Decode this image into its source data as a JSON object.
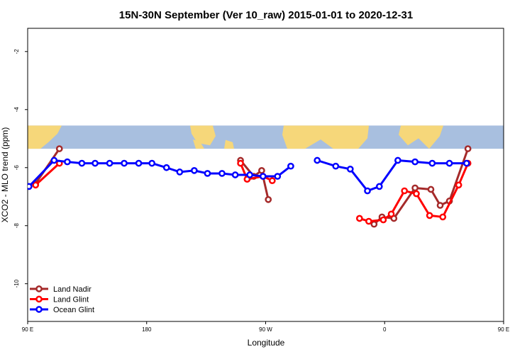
{
  "chart_data": {
    "type": "line",
    "title": "15N-30N September (Ver 10_raw)   2015-01-01 to 2020-12-31",
    "xlabel": "Longitude",
    "ylabel": "XCO2 - MLO trend (ppm)",
    "xlim": [
      90,
      450
    ],
    "ylim": [
      -11.3,
      -1.2
    ],
    "x_ticks": [
      {
        "value": 90,
        "label": "90 E"
      },
      {
        "value": 180,
        "label": "180"
      },
      {
        "value": 270,
        "label": "90 W"
      },
      {
        "value": 360,
        "label": "0"
      },
      {
        "value": 450,
        "label": "90 E"
      },
      {
        "value": 540,
        "label": "180"
      }
    ],
    "y_ticks": [
      {
        "value": -2,
        "label": "-2"
      },
      {
        "value": -4,
        "label": "-4"
      },
      {
        "value": -6,
        "label": "-6"
      },
      {
        "value": -8,
        "label": "-8"
      },
      {
        "value": -10,
        "label": "-10"
      }
    ],
    "map_band": {
      "ymin": -5.35,
      "ymax": -4.55,
      "ocean_color": "#a8bfdf",
      "land_color": "#f6d77a"
    },
    "legend_position": "bottom-left",
    "series": [
      {
        "name": "Land Nadir",
        "color": "#a52a2a",
        "segments": [
          [
            [
              96,
              -6.55
            ],
            [
              114,
              -5.35
            ]
          ],
          [
            [
              251,
              -5.75
            ],
            [
              261,
              -6.3
            ],
            [
              267,
              -6.1
            ],
            [
              272,
              -7.1
            ]
          ],
          [
            [
              352,
              -7.95
            ],
            [
              358,
              -7.7
            ],
            [
              367,
              -7.75
            ],
            [
              383,
              -6.7
            ],
            [
              395,
              -6.75
            ],
            [
              402,
              -7.3
            ],
            [
              409,
              -7.15
            ],
            [
              423,
              -5.35
            ]
          ]
        ]
      },
      {
        "name": "Land Glint",
        "color": "#ff0000",
        "segments": [
          [
            [
              96,
              -6.6
            ],
            [
              114,
              -5.85
            ]
          ],
          [
            [
              251,
              -5.85
            ],
            [
              256,
              -6.4
            ],
            [
              268,
              -6.3
            ],
            [
              275,
              -6.45
            ]
          ],
          [
            [
              341,
              -7.75
            ],
            [
              348,
              -7.85
            ],
            [
              359,
              -7.8
            ],
            [
              365,
              -7.6
            ],
            [
              375,
              -6.8
            ],
            [
              384,
              -6.9
            ],
            [
              394,
              -7.65
            ],
            [
              404,
              -7.7
            ],
            [
              416,
              -6.6
            ],
            [
              423,
              -5.85
            ]
          ]
        ]
      },
      {
        "name": "Ocean Glint",
        "color": "#0000ff",
        "segments": [
          [
            [
              91,
              -6.65
            ],
            [
              110,
              -5.75
            ],
            [
              120,
              -5.8
            ],
            [
              131,
              -5.85
            ],
            [
              141,
              -5.85
            ],
            [
              152,
              -5.85
            ],
            [
              163,
              -5.85
            ],
            [
              174,
              -5.85
            ],
            [
              184,
              -5.85
            ],
            [
              195,
              -6.0
            ],
            [
              205,
              -6.15
            ],
            [
              216,
              -6.1
            ],
            [
              226,
              -6.2
            ],
            [
              237,
              -6.2
            ],
            [
              247,
              -6.25
            ],
            [
              258,
              -6.25
            ],
            [
              268,
              -6.3
            ],
            [
              279,
              -6.3
            ],
            [
              289,
              -5.95
            ]
          ],
          [
            [
              309,
              -5.75
            ],
            [
              323,
              -5.95
            ],
            [
              334,
              -6.05
            ],
            [
              347,
              -6.8
            ],
            [
              356,
              -6.65
            ],
            [
              370,
              -5.75
            ],
            [
              383,
              -5.8
            ],
            [
              396,
              -5.85
            ],
            [
              409,
              -5.85
            ],
            [
              422,
              -5.85
            ]
          ]
        ]
      }
    ]
  }
}
